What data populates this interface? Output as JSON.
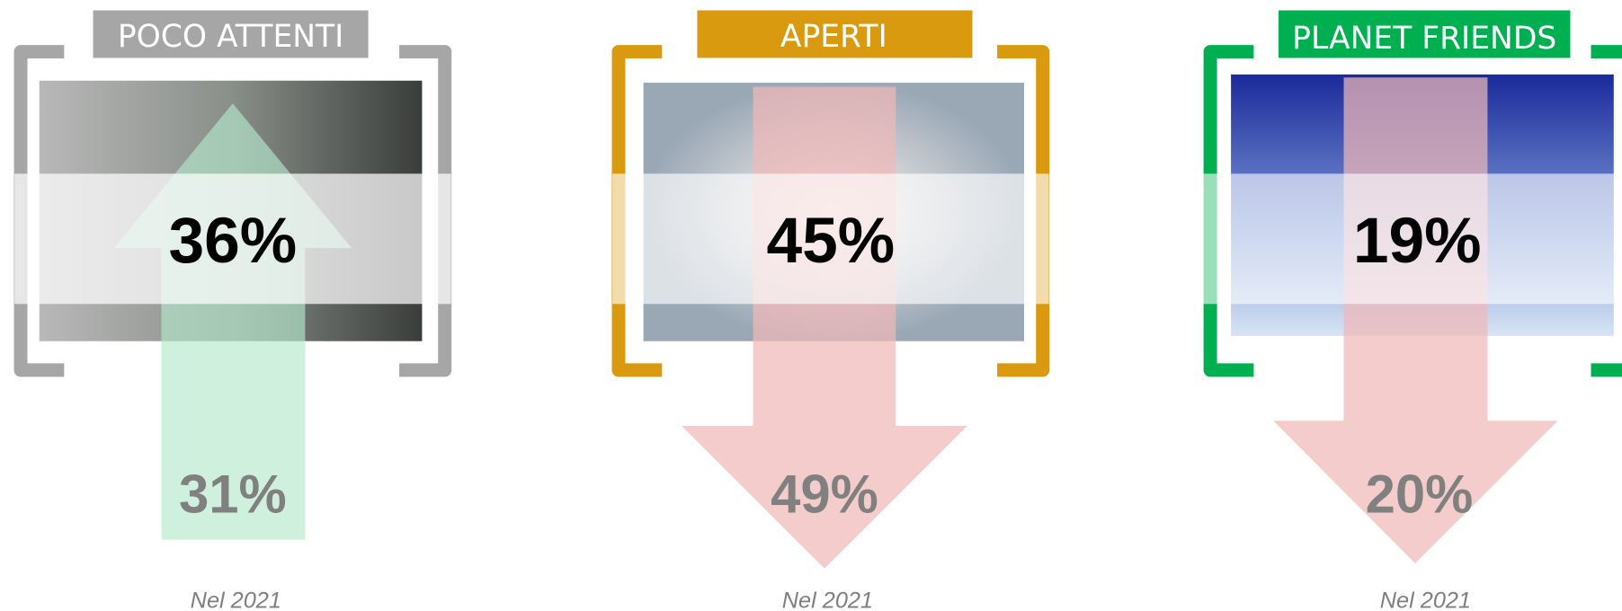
{
  "panels": [
    {
      "title": "POCO ATTENTI",
      "value": "36%",
      "previous_value": "31%",
      "note": "Nel 2021"
    },
    {
      "title": "APERTI",
      "value": "45%",
      "previous_value": "49%",
      "note": "Nel 2021"
    },
    {
      "title": "PLANET FRIENDS",
      "value": "19%",
      "previous_value": "20%",
      "note": "Nel 2021"
    }
  ]
}
